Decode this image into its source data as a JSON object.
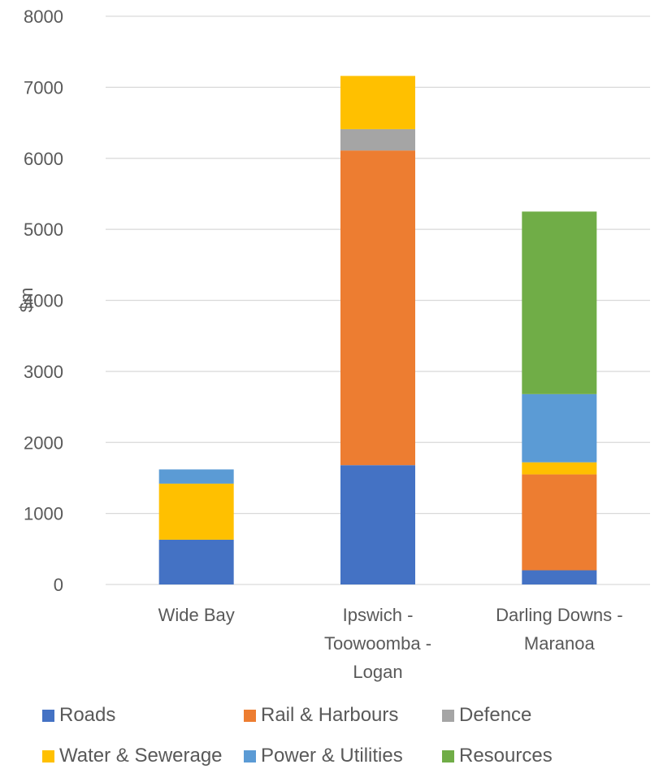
{
  "chart_data": {
    "type": "bar",
    "stacked": true,
    "ylabel": "$m",
    "xlabel": "",
    "ylim": [
      0,
      8000
    ],
    "yticks": [
      0,
      1000,
      2000,
      3000,
      4000,
      5000,
      6000,
      7000,
      8000
    ],
    "grid": true,
    "legend_position": "bottom",
    "categories": [
      [
        "Wide Bay"
      ],
      [
        "Ipswich -",
        "Toowoomba -",
        "Logan"
      ],
      [
        "Darling Downs -",
        "Maranoa"
      ]
    ],
    "series": [
      {
        "name": "Roads",
        "color": "#4472C4",
        "values": [
          630,
          1680,
          200
        ]
      },
      {
        "name": "Rail & Harbours",
        "color": "#ED7D31",
        "values": [
          0,
          4430,
          1350
        ]
      },
      {
        "name": "Defence",
        "color": "#A5A5A5",
        "values": [
          0,
          300,
          0
        ]
      },
      {
        "name": "Water & Sewerage",
        "color": "#FFC000",
        "values": [
          790,
          750,
          170
        ]
      },
      {
        "name": "Power & Utilities",
        "color": "#5B9BD5",
        "values": [
          200,
          0,
          960
        ]
      },
      {
        "name": "Resources",
        "color": "#70AD47",
        "values": [
          0,
          0,
          2570
        ]
      }
    ]
  }
}
